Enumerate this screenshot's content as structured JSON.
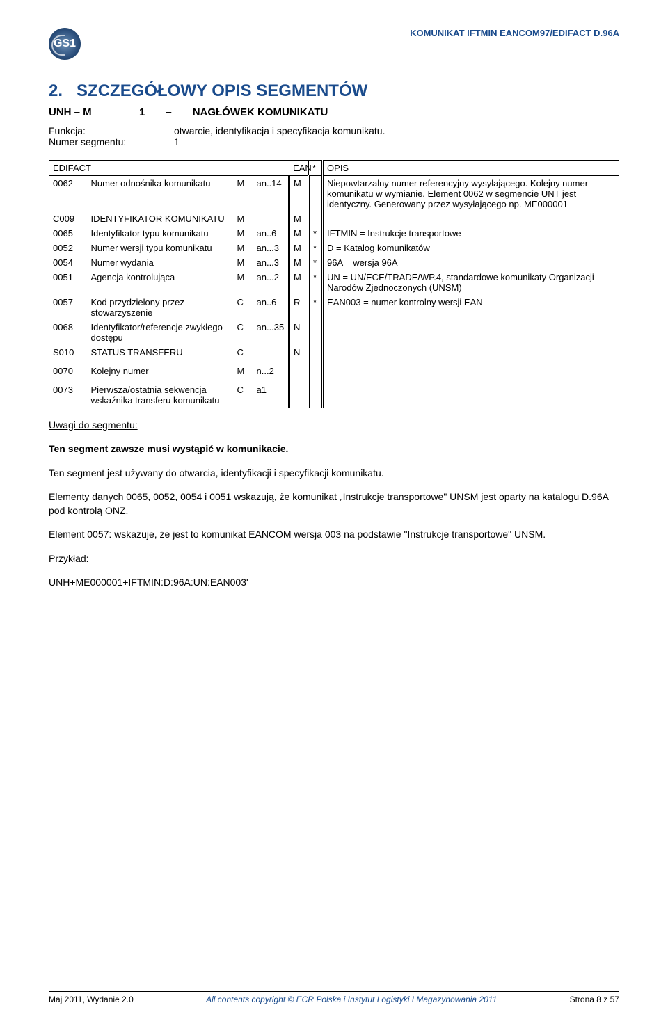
{
  "header": {
    "logo_text": "GS1",
    "doc_code": "KOMUNIKAT IFTMIN EANCOM97/EDIFACT D.96A"
  },
  "title": {
    "number": "2.",
    "text": "SZCZEGÓŁOWY OPIS SEGMENTÓW"
  },
  "subhead": {
    "seg_code": "UNH – M",
    "seg_count": "1",
    "seg_dash": "–",
    "seg_name": "NAGŁÓWEK KOMUNIKATU"
  },
  "funkcja": {
    "label1": "Funkcja:",
    "value1": "otwarcie, identyfikacja i specyfikacja komunikatu.",
    "label2": "Numer segmentu:",
    "value2": "1"
  },
  "table": {
    "head": {
      "edifact": "EDIFACT",
      "ean": "EAN",
      "star": "*",
      "opis": "OPIS"
    },
    "rows": [
      {
        "code": "0062",
        "name": "Numer odnośnika komunikatu",
        "mc": "M",
        "fmt": "an..14",
        "ean": "M",
        "star": "",
        "desc": "Niepowtarzalny numer referencyjny wysyłającego. Kolejny numer komunikatu w wymianie. Element 0062 w segmencie UNT jest identyczny. Generowany przez wysyłającego np. ME000001"
      },
      {
        "code": "C009",
        "name": "IDENTYFIKATOR KOMUNIKATU",
        "mc": "M",
        "fmt": "",
        "ean": "M",
        "star": "",
        "desc": ""
      },
      {
        "code": "0065",
        "name": "Identyfikator typu komunikatu",
        "mc": "M",
        "fmt": "an..6",
        "ean": "M",
        "star": "*",
        "desc": "IFTMIN = Instrukcje transportowe"
      },
      {
        "code": "0052",
        "name": "Numer wersji typu komunikatu",
        "mc": "M",
        "fmt": "an...3",
        "ean": "M",
        "star": "*",
        "desc": "D = Katalog komunikatów"
      },
      {
        "code": "0054",
        "name": "Numer wydania",
        "mc": "M",
        "fmt": "an...3",
        "ean": "M",
        "star": "*",
        "desc": "96A = wersja 96A"
      },
      {
        "code": "0051",
        "name": "Agencja kontrolująca",
        "mc": "M",
        "fmt": "an...2",
        "ean": "M",
        "star": "*",
        "desc": "UN = UN/ECE/TRADE/WP.4, standardowe komunikaty Organizacji Narodów Zjednoczonych (UNSM)"
      },
      {
        "code": "0057",
        "name": "Kod przydzielony przez stowarzyszenie",
        "mc": "C",
        "fmt": "an..6",
        "ean": "R",
        "star": "*",
        "desc": "EAN003 = numer kontrolny wersji EAN"
      },
      {
        "code": "0068",
        "name": "Identyfikator/referencje zwykłego dostępu",
        "mc": "C",
        "fmt": "an...35",
        "ean": "N",
        "star": "",
        "desc": ""
      },
      {
        "code": "S010",
        "name": "STATUS TRANSFERU",
        "mc": "C",
        "fmt": "",
        "ean": "N",
        "star": "",
        "desc": ""
      },
      {
        "code": "",
        "name": "",
        "mc": "",
        "fmt": "",
        "ean": "",
        "star": "",
        "desc": ""
      },
      {
        "code": "0070",
        "name": "Kolejny numer",
        "mc": "M",
        "fmt": "n...2",
        "ean": "",
        "star": "",
        "desc": ""
      },
      {
        "code": "",
        "name": "",
        "mc": "",
        "fmt": "",
        "ean": "",
        "star": "",
        "desc": ""
      },
      {
        "code": "0073",
        "name": "Pierwsza/ostatnia sekwencja wskaźnika transferu komunikatu",
        "mc": "C",
        "fmt": "a1",
        "ean": "",
        "star": "",
        "desc": ""
      }
    ]
  },
  "notes": {
    "uwagi_label": "Uwagi do segmentu:",
    "p1": "Ten segment zawsze musi wystąpić w komunikacie.",
    "p2": "Ten segment jest używany do otwarcia, identyfikacji i specyfikacji komunikatu.",
    "p3": "Elementy danych 0065, 0052, 0054 i 0051 wskazują, że komunikat „Instrukcje transportowe\" UNSM jest oparty na katalogu D.96A pod kontrolą ONZ.",
    "p4": "Element 0057: wskazuje, że jest to komunikat EANCOM wersja 003 na podstawie \"Instrukcje transportowe\" UNSM.",
    "przyklad_label": "Przykład:",
    "przyklad_value": "UNH+ME000001+IFTMIN:D:96A:UN:EAN003'"
  },
  "footer": {
    "left": "Maj 2011, Wydanie 2.0",
    "mid": "All contents copyright © ECR Polska i Instytut Logistyki I Magazynowania 2011",
    "right": "Strona 8 z 57"
  }
}
